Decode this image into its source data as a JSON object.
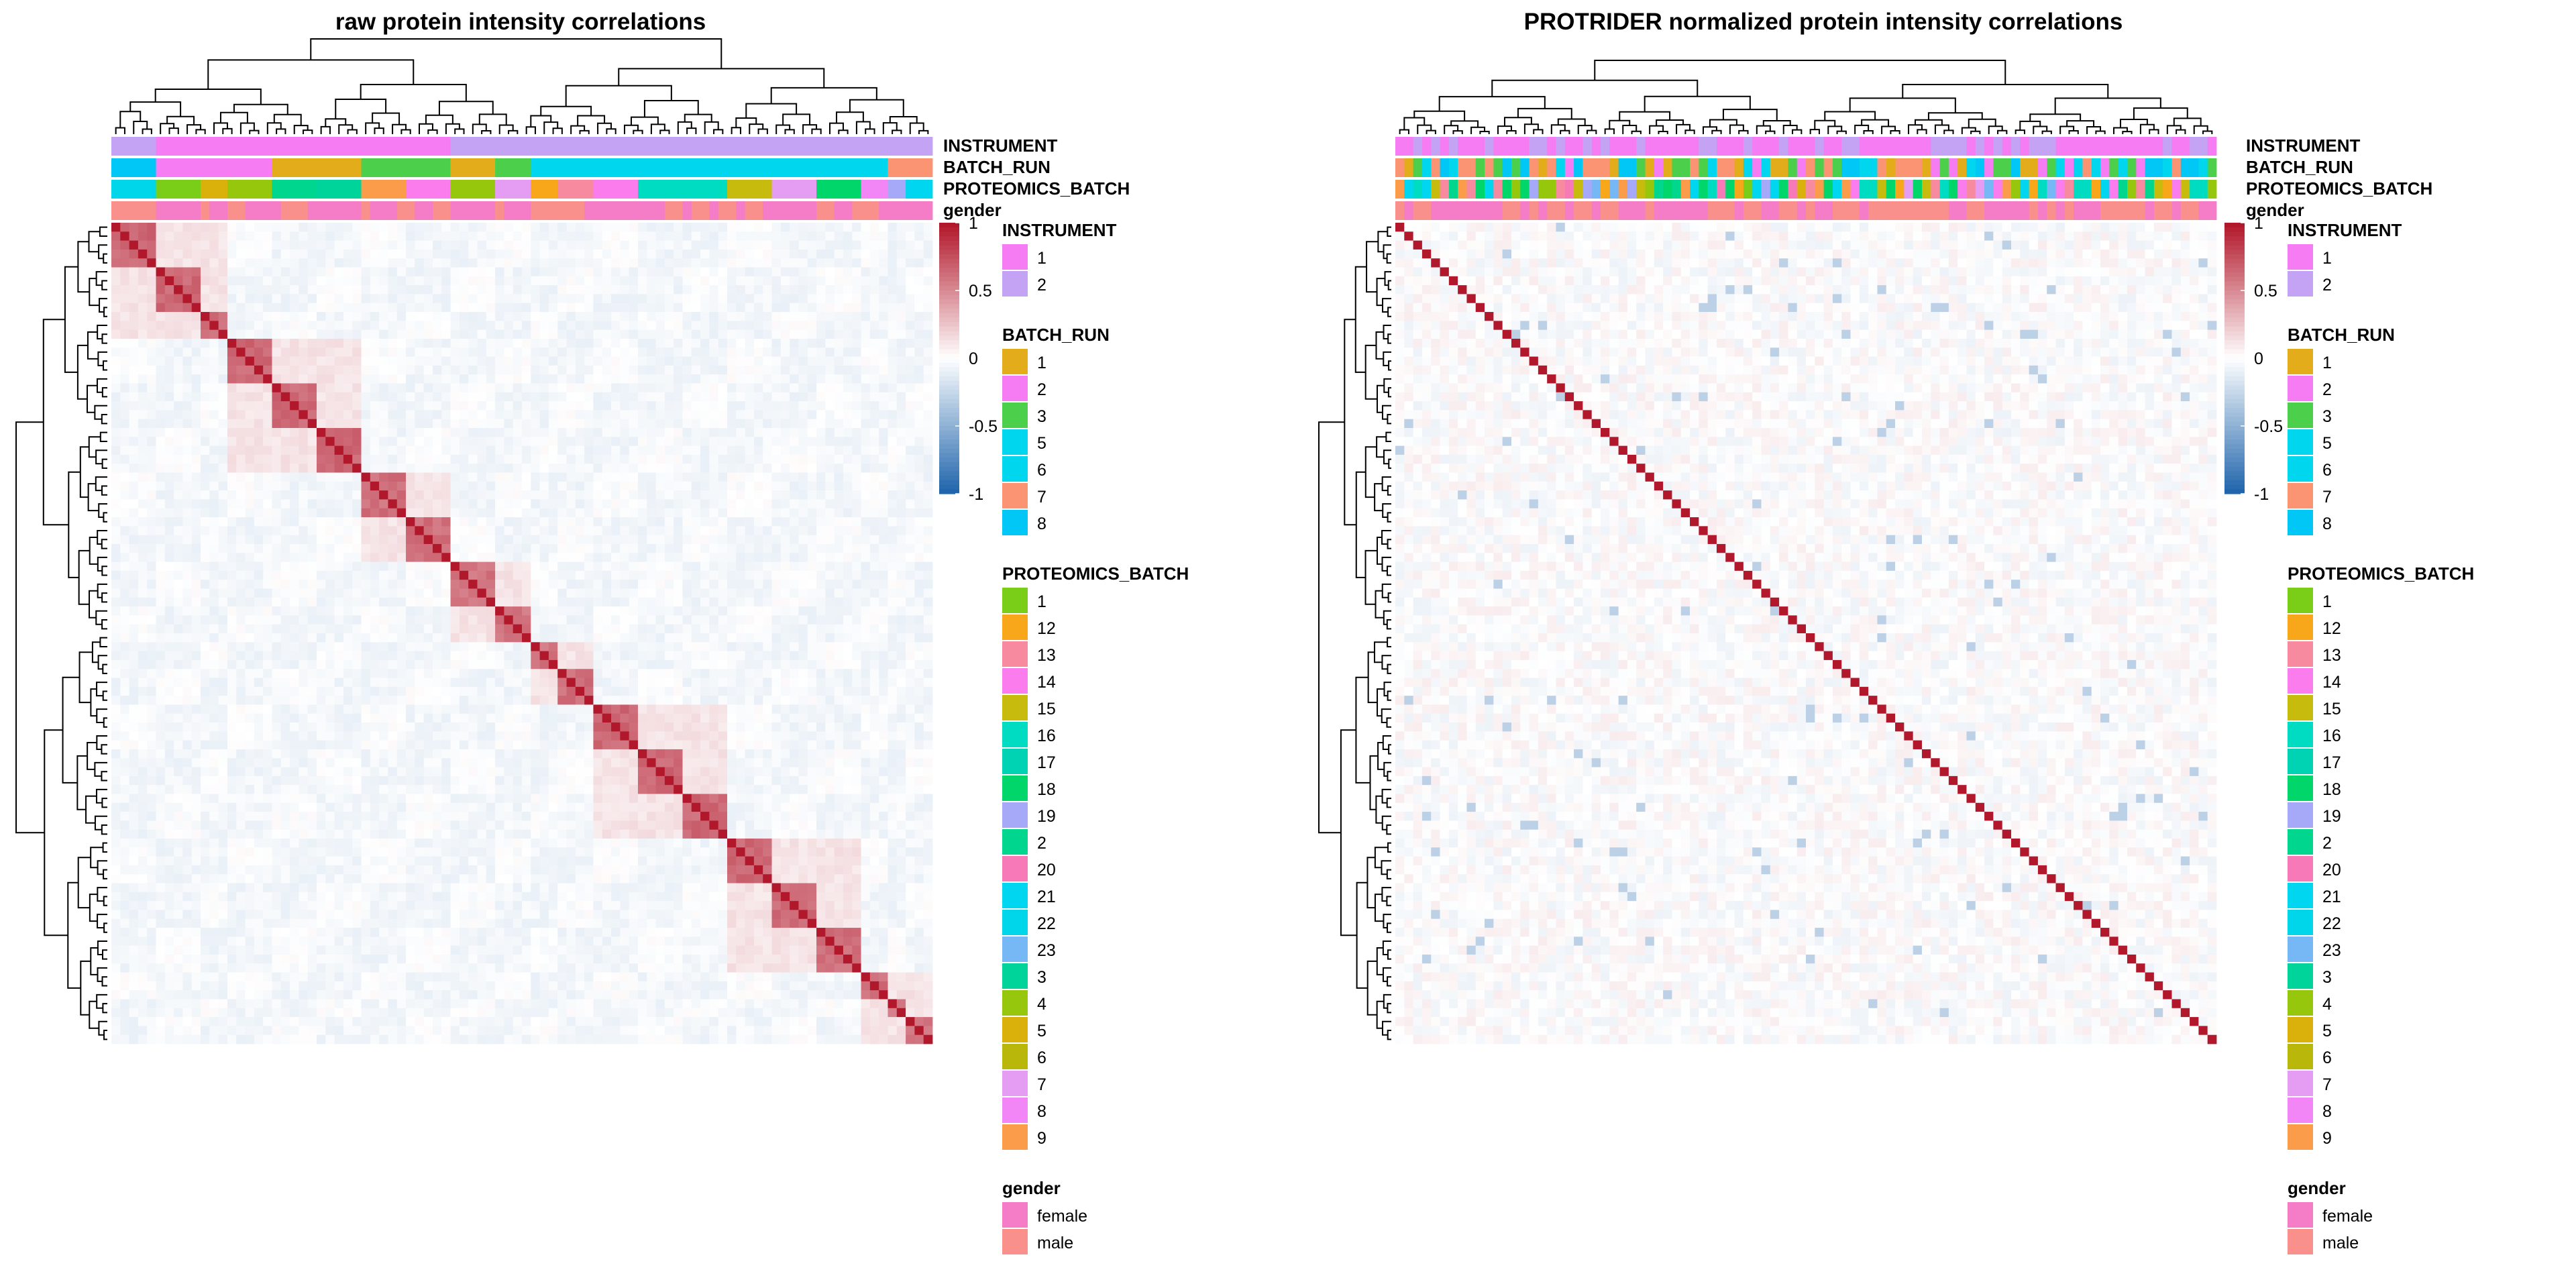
{
  "chart_data": [
    {
      "type": "heatmap",
      "title": "raw protein intensity correlations",
      "value_range": [
        -1,
        1
      ],
      "colorbar_ticks": [
        "1",
        "0.5",
        "0",
        "-0.5",
        "-1"
      ],
      "colors": {
        "low": "#2166ac",
        "mid": "#ffffff",
        "high": "#b2182b"
      },
      "clusters": [
        {
          "size": 5,
          "within": 0.65
        },
        {
          "size": 5,
          "within": 0.65
        },
        {
          "size": 3,
          "within": 0.62
        },
        {
          "size": 5,
          "within": 0.65
        },
        {
          "size": 5,
          "within": 0.65
        },
        {
          "size": 5,
          "within": 0.65
        },
        {
          "size": 5,
          "within": 0.62
        },
        {
          "size": 5,
          "within": 0.62
        },
        {
          "size": 5,
          "within": 0.6
        },
        {
          "size": 4,
          "within": 0.6
        },
        {
          "size": 3,
          "within": 0.6
        },
        {
          "size": 4,
          "within": 0.62
        },
        {
          "size": 5,
          "within": 0.65
        },
        {
          "size": 5,
          "within": 0.65
        },
        {
          "size": 5,
          "within": 0.65
        },
        {
          "size": 5,
          "within": 0.65
        },
        {
          "size": 5,
          "within": 0.65
        },
        {
          "size": 5,
          "within": 0.62
        },
        {
          "size": 3,
          "within": 0.62
        },
        {
          "size": 2,
          "within": 0.6
        },
        {
          "size": 3,
          "within": 0.6
        }
      ],
      "annotation_rows": [
        "INSTRUMENT",
        "BATCH_RUN",
        "PROTEOMICS_BATCH",
        "gender"
      ]
    },
    {
      "type": "heatmap",
      "title": "PROTRIDER normalized protein intensity correlations",
      "value_range": [
        -1,
        1
      ],
      "colorbar_ticks": [
        "1",
        "0.5",
        "0",
        "-0.5",
        "-1"
      ],
      "colors": {
        "low": "#2166ac",
        "mid": "#ffffff",
        "high": "#b2182b"
      },
      "samples": 92,
      "diagonal": 1,
      "off_diagonal_spread": 0.15,
      "annotation_rows": [
        "INSTRUMENT",
        "BATCH_RUN",
        "PROTEOMICS_BATCH",
        "gender"
      ]
    }
  ],
  "legends": {
    "instrument": {
      "title": "INSTRUMENT",
      "items": [
        {
          "label": "1",
          "color": "#f57cf2"
        },
        {
          "label": "2",
          "color": "#c4a3f5"
        }
      ]
    },
    "batch_run": {
      "title": "BATCH_RUN",
      "items": [
        {
          "label": "1",
          "color": "#e2ac1a"
        },
        {
          "label": "2",
          "color": "#f57cf2"
        },
        {
          "label": "3",
          "color": "#4cd04b"
        },
        {
          "label": "5",
          "color": "#00d7ee"
        },
        {
          "label": "6",
          "color": "#00d7ee"
        },
        {
          "label": "7",
          "color": "#fb9473"
        },
        {
          "label": "8",
          "color": "#00c7f5"
        }
      ]
    },
    "proteomics_batch": {
      "title": "PROTEOMICS_BATCH",
      "items": [
        {
          "label": "1",
          "color": "#7bce18"
        },
        {
          "label": "12",
          "color": "#f8a71a"
        },
        {
          "label": "13",
          "color": "#f88aa0"
        },
        {
          "label": "14",
          "color": "#fb7ced"
        },
        {
          "label": "15",
          "color": "#c7bb0e"
        },
        {
          "label": "16",
          "color": "#00dcc1"
        },
        {
          "label": "17",
          "color": "#00d3b4"
        },
        {
          "label": "18",
          "color": "#00d66a"
        },
        {
          "label": "19",
          "color": "#a6a8f8"
        },
        {
          "label": "2",
          "color": "#00d68d"
        },
        {
          "label": "20",
          "color": "#f879b8"
        },
        {
          "label": "21",
          "color": "#00d6f0"
        },
        {
          "label": "22",
          "color": "#00d6ea"
        },
        {
          "label": "23",
          "color": "#76b7f5"
        },
        {
          "label": "3",
          "color": "#00d49a"
        },
        {
          "label": "4",
          "color": "#96c70c"
        },
        {
          "label": "5",
          "color": "#d9b10a"
        },
        {
          "label": "6",
          "color": "#b9b80a"
        },
        {
          "label": "7",
          "color": "#e59cf3"
        },
        {
          "label": "8",
          "color": "#f286f7"
        },
        {
          "label": "9",
          "color": "#fb9c4a"
        }
      ]
    },
    "gender": {
      "title": "gender",
      "items": [
        {
          "label": "female",
          "color": "#f57cc7"
        },
        {
          "label": "male",
          "color": "#f9908c"
        }
      ]
    }
  },
  "left_annotation_colors": {
    "instrument": [
      "#c4a3f5",
      "#f57cf2",
      "#f57cf2",
      "#f57cf2",
      "#f57cf2",
      "#f57cf2",
      "#f57cf2",
      "#f57cf2",
      "#c4a3f5",
      "#c4a3f5",
      "#c4a3f5",
      "#c4a3f5",
      "#c4a3f5",
      "#c4a3f5",
      "#c4a3f5",
      "#c4a3f5",
      "#c4a3f5",
      "#c4a3f5",
      "#c4a3f5",
      "#c4a3f5",
      "#c4a3f5"
    ],
    "batch_run": [
      "#00c7f5",
      "#f57cf2",
      "#f57cf2",
      "#f57cf2",
      "#e2ac1a",
      "#e2ac1a",
      "#4cd04b",
      "#4cd04b",
      "#e2ac1a",
      "#4cd04b",
      "#00d7ee",
      "#00d7ee",
      "#00d7ee",
      "#00d7ee",
      "#00d7ee",
      "#00d7ee",
      "#00d7ee",
      "#00d7ee",
      "#00d7ee",
      "#fb9473",
      "#fb9473"
    ],
    "proteomics_batch": [
      "#00d6ea",
      "#7bce18",
      "#d9b10a",
      "#96c70c",
      "#00d68d",
      "#00d49a",
      "#fb9c4a",
      "#fb7ced",
      "#96c70c",
      "#e59cf3",
      "#f8a71a",
      "#f88aa0",
      "#fb7ced",
      "#00dcc1",
      "#00dcc1",
      "#c7bb0e",
      "#e59cf3",
      "#00d66a",
      "#f286f7",
      "#a6a8f8",
      "#00d6f0"
    ],
    "gender": [
      "#f9908c",
      "#f57cc7",
      "#f9908c",
      "#f9908c",
      "#f9908c",
      "#f57cc7",
      "#f9908c",
      "#f9908c",
      "#f57cc7",
      "#f9908c",
      "#f9908c",
      "#f9908c",
      "#f57cc7",
      "#f9908c",
      "#f9908c",
      "#f9908c",
      "#f57cc7",
      "#f9908c",
      "#f9908c",
      "#f57cc7",
      "#f9908c"
    ]
  },
  "right_annotation_palettes": {
    "instrument": [
      "#f57cf2",
      "#c4a3f5"
    ],
    "batch_run": [
      "#e2ac1a",
      "#f57cf2",
      "#4cd04b",
      "#00d7ee",
      "#fb9473",
      "#00c7f5"
    ],
    "proteomics_batch": [
      "#7bce18",
      "#f8a71a",
      "#f88aa0",
      "#fb7ced",
      "#c7bb0e",
      "#00dcc1",
      "#00d66a",
      "#a6a8f8",
      "#00d68d",
      "#f879b8",
      "#00d6f0",
      "#76b7f5",
      "#96c70c",
      "#d9b10a",
      "#e59cf3",
      "#fb9c4a"
    ],
    "gender": [
      "#f57cc7",
      "#f9908c"
    ]
  }
}
